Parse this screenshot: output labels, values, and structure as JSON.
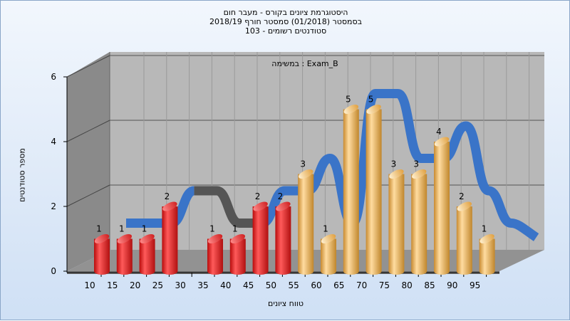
{
  "chart": {
    "title_lines": [
      "היסטוגרמת ציונים בקורס - מעבר חום",
      "בסמסטר  (01/2018)  סמסטר חורף 2018/19",
      "סטודנטים רשומים - 103"
    ],
    "task_label": "במשימה : Exam_B",
    "ylabel": "מספר סטודנטים",
    "xlabel": "טווח ציונים"
  },
  "chart_data": {
    "type": "bar",
    "title": "היסטוגרמת ציונים בקורס - מעבר חום",
    "xlabel": "טווח ציונים",
    "ylabel": "מספר סטודנטים",
    "ylim": [
      0,
      6
    ],
    "yticks": [
      0,
      2,
      4,
      6
    ],
    "categories": [
      "10",
      "15",
      "20",
      "25",
      "30",
      "35",
      "40",
      "45",
      "50",
      "55",
      "60",
      "65",
      "70",
      "75",
      "80",
      "85",
      "90",
      "95"
    ],
    "values": [
      1,
      1,
      1,
      2,
      null,
      1,
      1,
      2,
      2,
      3,
      1,
      5,
      5,
      3,
      3,
      4,
      2,
      1
    ],
    "labels": [
      "1",
      "1",
      "1",
      "2",
      "",
      "1",
      "1",
      "2",
      "2",
      "3",
      "1",
      "5",
      "5",
      "3",
      "3",
      "4",
      "2",
      "1"
    ],
    "bar_colors": [
      "red",
      "red",
      "red",
      "red",
      "",
      "red",
      "red",
      "red",
      "red",
      "orange",
      "orange",
      "orange",
      "orange",
      "orange",
      "orange",
      "orange",
      "orange",
      "orange"
    ],
    "colors": {
      "red": "#e02020",
      "orange": "#e8a848",
      "trend_blue": "#3a74c8",
      "trend_gray": "#555555"
    },
    "grid": true,
    "legend": "none"
  }
}
